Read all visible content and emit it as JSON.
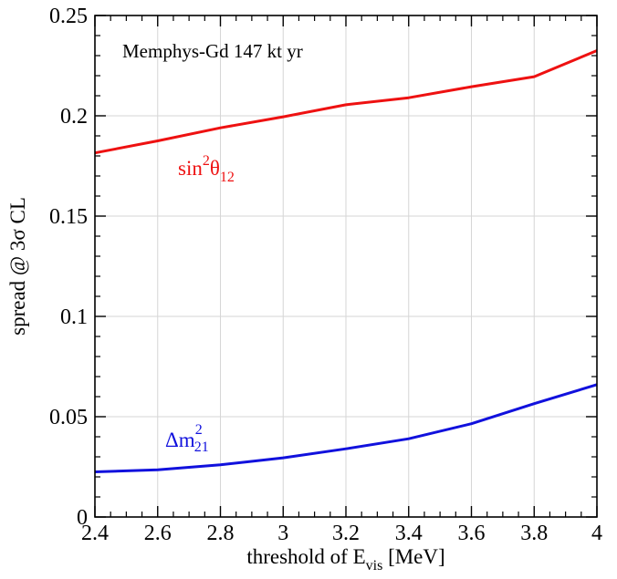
{
  "chart_data": {
    "type": "line",
    "annotation": "Memphys-Gd 147 kt yr",
    "xlabel": {
      "prefix": "threshold of E",
      "subscript": "vis",
      "suffix": " [MeV]"
    },
    "ylabel": "spread @ 3σ CL",
    "xlim": [
      2.4,
      4.0
    ],
    "ylim": [
      0,
      0.25
    ],
    "xticks": [
      2.4,
      2.6,
      2.8,
      3.0,
      3.2,
      3.4,
      3.6,
      3.8,
      4.0
    ],
    "xtick_labels": [
      "2.4",
      "2.6",
      "2.8",
      "3",
      "3.2",
      "3.4",
      "3.6",
      "3.8",
      "4"
    ],
    "yticks": [
      0,
      0.05,
      0.1,
      0.15,
      0.2,
      0.25
    ],
    "ytick_labels": [
      "0",
      "0.05",
      "0.1",
      "0.15",
      "0.2",
      "0.25"
    ],
    "grid": true,
    "series": [
      {
        "label_parts": {
          "base": "sin",
          "sup": "2",
          "greek": "θ",
          "sub": "12"
        },
        "color": "#ee1111",
        "x": [
          2.4,
          2.6,
          2.8,
          3.0,
          3.2,
          3.4,
          3.6,
          3.8,
          4.0
        ],
        "y": [
          0.1815,
          0.1875,
          0.194,
          0.1995,
          0.2055,
          0.209,
          0.2145,
          0.2195,
          0.2325
        ]
      },
      {
        "label_parts": {
          "base": "Δm",
          "sup": "2",
          "sub": "21"
        },
        "color": "#1111dd",
        "x": [
          2.4,
          2.6,
          2.8,
          3.0,
          3.2,
          3.4,
          3.6,
          3.8,
          4.0
        ],
        "y": [
          0.0225,
          0.0235,
          0.026,
          0.0295,
          0.034,
          0.039,
          0.0465,
          0.0565,
          0.066
        ]
      }
    ]
  }
}
